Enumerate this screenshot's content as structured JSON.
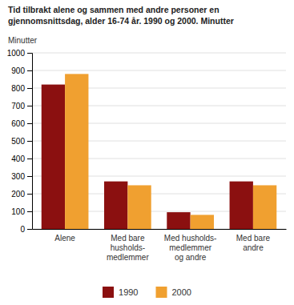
{
  "chart_data": {
    "type": "bar",
    "title": "Tid tilbrakt alene og sammen med andre personer en\ngjennomsnittsdag, alder 16-74 år. 1990 og 2000. Minutter",
    "ylabel": "Minutter",
    "categories": [
      "Alene",
      "Med bare\nhusholds-\nmedlemmer",
      "Med husholds-\nmedlemmer\nog andre",
      "Med bare\nandre"
    ],
    "series": [
      {
        "name": "1990",
        "color": "#8B1010",
        "values": [
          820,
          270,
          95,
          270
        ]
      },
      {
        "name": "2000",
        "color": "#F0A030",
        "values": [
          880,
          248,
          80,
          248
        ]
      }
    ],
    "ylim": [
      0,
      1000
    ],
    "yticks": [
      0,
      100,
      200,
      300,
      400,
      500,
      600,
      700,
      800,
      900,
      1000
    ],
    "grid": true,
    "legend": "bottom"
  }
}
